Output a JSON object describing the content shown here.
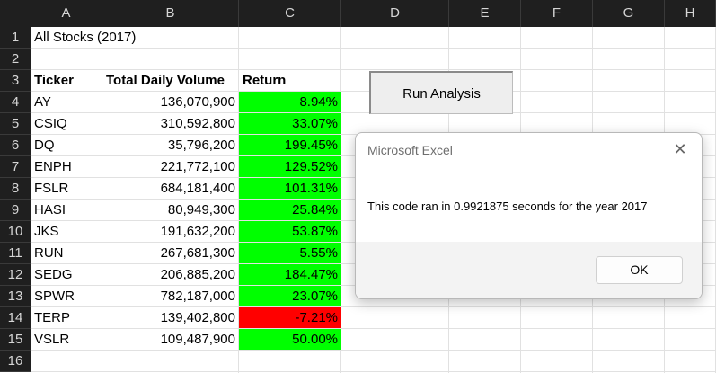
{
  "sheet": {
    "columns": [
      "A",
      "B",
      "C",
      "D",
      "E",
      "F",
      "G",
      "H"
    ],
    "rows": [
      "1",
      "2",
      "3",
      "4",
      "5",
      "6",
      "7",
      "8",
      "9",
      "10",
      "11",
      "12",
      "13",
      "14",
      "15",
      "16"
    ],
    "title": "All Stocks (2017)",
    "headers": {
      "ticker": "Ticker",
      "volume": "Total Daily Volume",
      "return": "Return"
    },
    "data": [
      {
        "ticker": "AY",
        "volume": "136,070,900",
        "return": "8.94%",
        "positive": true
      },
      {
        "ticker": "CSIQ",
        "volume": "310,592,800",
        "return": "33.07%",
        "positive": true
      },
      {
        "ticker": "DQ",
        "volume": "35,796,200",
        "return": "199.45%",
        "positive": true
      },
      {
        "ticker": "ENPH",
        "volume": "221,772,100",
        "return": "129.52%",
        "positive": true
      },
      {
        "ticker": "FSLR",
        "volume": "684,181,400",
        "return": "101.31%",
        "positive": true
      },
      {
        "ticker": "HASI",
        "volume": "80,949,300",
        "return": "25.84%",
        "positive": true
      },
      {
        "ticker": "JKS",
        "volume": "191,632,200",
        "return": "53.87%",
        "positive": true
      },
      {
        "ticker": "RUN",
        "volume": "267,681,300",
        "return": "5.55%",
        "positive": true
      },
      {
        "ticker": "SEDG",
        "volume": "206,885,200",
        "return": "184.47%",
        "positive": true
      },
      {
        "ticker": "SPWR",
        "volume": "782,187,000",
        "return": "23.07%",
        "positive": true
      },
      {
        "ticker": "TERP",
        "volume": "139,402,800",
        "return": "-7.21%",
        "positive": false
      },
      {
        "ticker": "VSLR",
        "volume": "109,487,900",
        "return": "50.00%",
        "positive": true
      }
    ],
    "colors": {
      "positive": "#00ff00",
      "negative": "#ff0000"
    }
  },
  "button": {
    "label": "Run Analysis"
  },
  "dialog": {
    "title": "Microsoft Excel",
    "message": "This code ran in 0.9921875 seconds for the year 2017",
    "ok_label": "OK",
    "close_icon": "close-icon"
  }
}
